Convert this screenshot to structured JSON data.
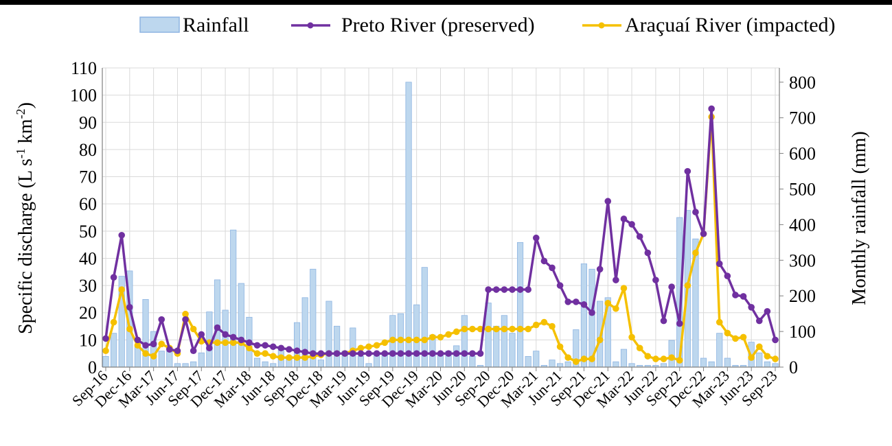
{
  "chart_data": {
    "type": "bar+line",
    "legend": {
      "placement": "top",
      "entries": [
        "Rainfall",
        "Preto River (preserved)",
        "Araçuaí River (impacted)"
      ]
    },
    "ylabel_left": "Specific discharge (L s-1 km-2)",
    "ylabel_left_parts": {
      "a": "Specific discharge (L s",
      "sup1": "-1",
      "b": " km",
      "sup2": "-2",
      "c": ")"
    },
    "ylabel_right": "Monthly rainfall (mm)",
    "ylim_left": [
      0,
      110
    ],
    "ylim_right": [
      0,
      840
    ],
    "yticks_left": [
      "0",
      "10",
      "20",
      "30",
      "40",
      "50",
      "60",
      "70",
      "80",
      "90",
      "100",
      "110"
    ],
    "yticks_right": [
      "0",
      "100",
      "200",
      "300",
      "400",
      "500",
      "600",
      "700",
      "800"
    ],
    "xticks": [
      "Sep-16",
      "Dec-16",
      "Mar-17",
      "Jun-17",
      "Sep-17",
      "Dec-17",
      "Mar-18",
      "Jun-18",
      "Sep-18",
      "Dec-18",
      "Mar-19",
      "Jun-19",
      "Sep-19",
      "Dec-19",
      "Mar-20",
      "Jun-20",
      "Sep-20",
      "Dec-20",
      "Mar-21",
      "Jun-21",
      "Sep-21",
      "Dec-21",
      "Mar-22",
      "Jun-22",
      "Sep-22",
      "Dec-22",
      "Mar-23",
      "Jun-23",
      "Sep-23"
    ],
    "grid": true,
    "colors": {
      "rainfall_fill": "#bdd7ee",
      "rainfall_stroke": "#8db4e2",
      "preto": "#7030a0",
      "aracuai": "#f5c000",
      "grid": "#d9d9d9"
    },
    "rainfall": {
      "name": "Rainfall",
      "x_months": [
        0,
        1,
        2,
        3,
        4,
        5,
        6,
        7,
        8,
        9,
        10,
        11,
        12,
        13,
        14,
        15,
        16,
        17,
        18,
        19,
        20,
        21,
        22,
        23,
        24,
        25,
        26,
        27,
        28,
        29,
        30,
        31,
        32,
        33,
        34,
        35,
        36,
        37,
        38,
        39,
        40,
        41,
        42,
        43,
        44,
        45,
        46,
        47,
        48,
        49,
        50,
        51,
        52,
        53,
        54,
        55,
        56,
        57,
        58,
        59,
        60,
        61,
        62,
        63,
        64,
        65,
        66,
        67,
        68,
        69,
        70,
        71,
        72,
        73,
        74,
        75,
        76,
        77,
        78,
        79,
        80,
        81,
        82,
        83,
        84
      ],
      "values": [
        30,
        95,
        255,
        270,
        60,
        190,
        100,
        45,
        45,
        10,
        10,
        15,
        40,
        155,
        245,
        160,
        385,
        235,
        140,
        25,
        15,
        10,
        55,
        25,
        125,
        195,
        275,
        20,
        185,
        115,
        45,
        110,
        30,
        10,
        40,
        40,
        145,
        150,
        800,
        175,
        280,
        90,
        40,
        45,
        60,
        145,
        30,
        5,
        180,
        115,
        145,
        95,
        350,
        30,
        45,
        5,
        20,
        10,
        15,
        105,
        290,
        275,
        185,
        195,
        15,
        50,
        10,
        5,
        5,
        5,
        10,
        75,
        420,
        440,
        360,
        25,
        15,
        95,
        25,
        5,
        5,
        70,
        40,
        15,
        10
      ]
    },
    "series": [
      {
        "name": "Preto River (preserved)",
        "points": [
          [
            0,
            10.5
          ],
          [
            1,
            33
          ],
          [
            2,
            48.5
          ],
          [
            3,
            22
          ],
          [
            4,
            10
          ],
          [
            5,
            8
          ],
          [
            6,
            8.5
          ],
          [
            7,
            17.5
          ],
          [
            8,
            6.5
          ],
          [
            9,
            6
          ],
          [
            10,
            17.5
          ],
          [
            11,
            6
          ],
          [
            12,
            12
          ],
          [
            13,
            7
          ],
          [
            14,
            14.5
          ],
          [
            15,
            12
          ],
          [
            16,
            11
          ],
          [
            17,
            10
          ],
          [
            18,
            9
          ],
          [
            19,
            8
          ],
          [
            20,
            8
          ],
          [
            21,
            7.5
          ],
          [
            22,
            7
          ],
          [
            23,
            6.5
          ],
          [
            24,
            6
          ],
          [
            25,
            5.5
          ],
          [
            26,
            5
          ],
          [
            27,
            5
          ],
          [
            28,
            5
          ],
          [
            29,
            5
          ],
          [
            30,
            5
          ],
          [
            31,
            5
          ],
          [
            32,
            5
          ],
          [
            33,
            5
          ],
          [
            34,
            5
          ],
          [
            35,
            5
          ],
          [
            36,
            5
          ],
          [
            37,
            5
          ],
          [
            38,
            5
          ],
          [
            39,
            5
          ],
          [
            40,
            5
          ],
          [
            41,
            5
          ],
          [
            42,
            5
          ],
          [
            43,
            5
          ],
          [
            44,
            5
          ],
          [
            45,
            5
          ],
          [
            46,
            5
          ],
          [
            47,
            5
          ],
          [
            48,
            28.5
          ],
          [
            49,
            28.5
          ],
          [
            50,
            28.5
          ],
          [
            51,
            28.5
          ],
          [
            52,
            28.5
          ],
          [
            53,
            28.5
          ],
          [
            54,
            47.5
          ],
          [
            55,
            39
          ],
          [
            56,
            36.5
          ],
          [
            57,
            30
          ],
          [
            58,
            24
          ],
          [
            59,
            24
          ],
          [
            60,
            23
          ],
          [
            61,
            20
          ],
          [
            62,
            36
          ],
          [
            63,
            61
          ],
          [
            64,
            32
          ],
          [
            65,
            54.5
          ],
          [
            66,
            52.5
          ],
          [
            67,
            48
          ],
          [
            68,
            42
          ],
          [
            69,
            32
          ],
          [
            70,
            17
          ],
          [
            71,
            29.5
          ],
          [
            72,
            16
          ],
          [
            73,
            72
          ],
          [
            74,
            57
          ],
          [
            75,
            49
          ],
          [
            76,
            95
          ],
          [
            77,
            38
          ],
          [
            78,
            33.5
          ],
          [
            79,
            26.5
          ],
          [
            80,
            26
          ],
          [
            81,
            22
          ],
          [
            82,
            17
          ],
          [
            83,
            20.5
          ],
          [
            84,
            10
          ]
        ]
      },
      {
        "name": "Araçuaí River (impacted)",
        "points": [
          [
            0,
            6
          ],
          [
            1,
            16.5
          ],
          [
            2,
            28.5
          ],
          [
            3,
            14
          ],
          [
            4,
            8
          ],
          [
            5,
            5
          ],
          [
            6,
            4
          ],
          [
            7,
            8.5
          ],
          [
            8,
            7
          ],
          [
            9,
            5
          ],
          [
            10,
            19.5
          ],
          [
            11,
            14
          ],
          [
            12,
            9.5
          ],
          [
            13,
            9
          ],
          [
            14,
            9
          ],
          [
            15,
            9
          ],
          [
            16,
            9
          ],
          [
            17,
            9
          ],
          [
            18,
            7
          ],
          [
            19,
            5
          ],
          [
            20,
            5
          ],
          [
            21,
            4
          ],
          [
            22,
            3.5
          ],
          [
            23,
            3.5
          ],
          [
            24,
            3.5
          ],
          [
            25,
            3.5
          ],
          [
            26,
            4
          ],
          [
            27,
            4.5
          ],
          [
            28,
            5
          ],
          [
            29,
            5
          ],
          [
            30,
            5
          ],
          [
            31,
            6
          ],
          [
            32,
            7
          ],
          [
            33,
            7.5
          ],
          [
            34,
            8
          ],
          [
            35,
            9
          ],
          [
            36,
            10
          ],
          [
            37,
            10
          ],
          [
            38,
            10
          ],
          [
            39,
            10
          ],
          [
            40,
            10
          ],
          [
            41,
            11
          ],
          [
            42,
            11
          ],
          [
            43,
            12
          ],
          [
            44,
            13
          ],
          [
            45,
            14
          ],
          [
            46,
            14
          ],
          [
            47,
            14
          ],
          [
            48,
            14
          ],
          [
            49,
            14
          ],
          [
            50,
            14
          ],
          [
            51,
            14
          ],
          [
            52,
            14
          ],
          [
            53,
            14
          ],
          [
            54,
            15.5
          ],
          [
            55,
            16.5
          ],
          [
            56,
            15
          ],
          [
            57,
            7.5
          ],
          [
            58,
            3.5
          ],
          [
            59,
            2
          ],
          [
            60,
            3
          ],
          [
            61,
            3
          ],
          [
            62,
            10
          ],
          [
            63,
            23.5
          ],
          [
            64,
            21.5
          ],
          [
            65,
            29
          ],
          [
            66,
            11
          ],
          [
            67,
            7
          ],
          [
            68,
            4
          ],
          [
            69,
            3
          ],
          [
            70,
            3
          ],
          [
            71,
            3.5
          ],
          [
            72,
            2.5
          ],
          [
            73,
            30
          ],
          [
            74,
            42
          ],
          [
            75,
            49
          ],
          [
            76,
            92
          ],
          [
            77,
            16.5
          ],
          [
            78,
            12.5
          ],
          [
            79,
            10.5
          ],
          [
            80,
            11
          ],
          [
            81,
            3.5
          ],
          [
            82,
            7.5
          ],
          [
            83,
            4
          ],
          [
            84,
            3
          ]
        ]
      }
    ]
  }
}
